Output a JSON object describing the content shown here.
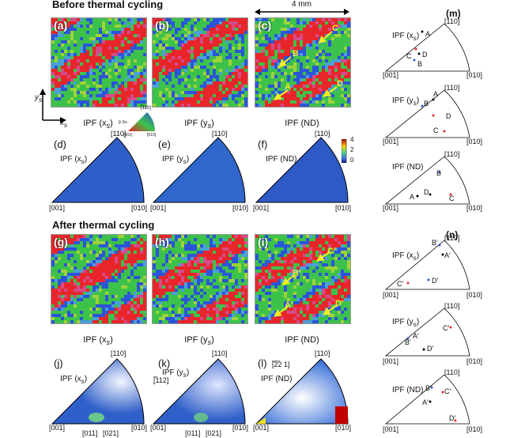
{
  "sections": {
    "before": "Before thermal cycling",
    "after": "After thermal cycling"
  },
  "scale_bar": "4 mm",
  "panels": {
    "a": "(a)",
    "b": "(b)",
    "c": "(c)",
    "d": "(d)",
    "e": "(e)",
    "f": "(f)",
    "g": "(g)",
    "h": "(h)",
    "i": "(i)",
    "j": "(j)",
    "k": "(k)",
    "l": "(l)",
    "m": "(m)",
    "n": "(n)"
  },
  "captions": {
    "ipf_x": "IPF (x",
    "ipf_y": "IPF (y",
    "ipf_nd": "IPF (ND)",
    "sub_s": "s",
    "close": ")"
  },
  "axes": {
    "ys": "y",
    "xs": "x",
    "sub": "s"
  },
  "legend_key": {
    "top": "[̅110]",
    "phase": "β-Sn",
    "left": "[001]",
    "right": "[010]"
  },
  "pole": {
    "top": "[110]",
    "left": "[001]",
    "right": "[010]",
    "idx_012": "[011]",
    "idx_021": "[021]",
    "idx_112": "[̅112]",
    "idx_221": "[̅̅2̅2 1]"
  },
  "colorbar": {
    "ticks": [
      "4",
      "2",
      "0"
    ]
  },
  "grain_labels_before": [
    "A",
    "B",
    "C",
    "D"
  ],
  "grain_labels_after": [
    "A′",
    "B′",
    "C′",
    "D′"
  ],
  "colors": {
    "red": "#e8262a",
    "green": "#3cc24a",
    "blue": "#2b55d8",
    "arrow": "#f2ee22"
  }
}
